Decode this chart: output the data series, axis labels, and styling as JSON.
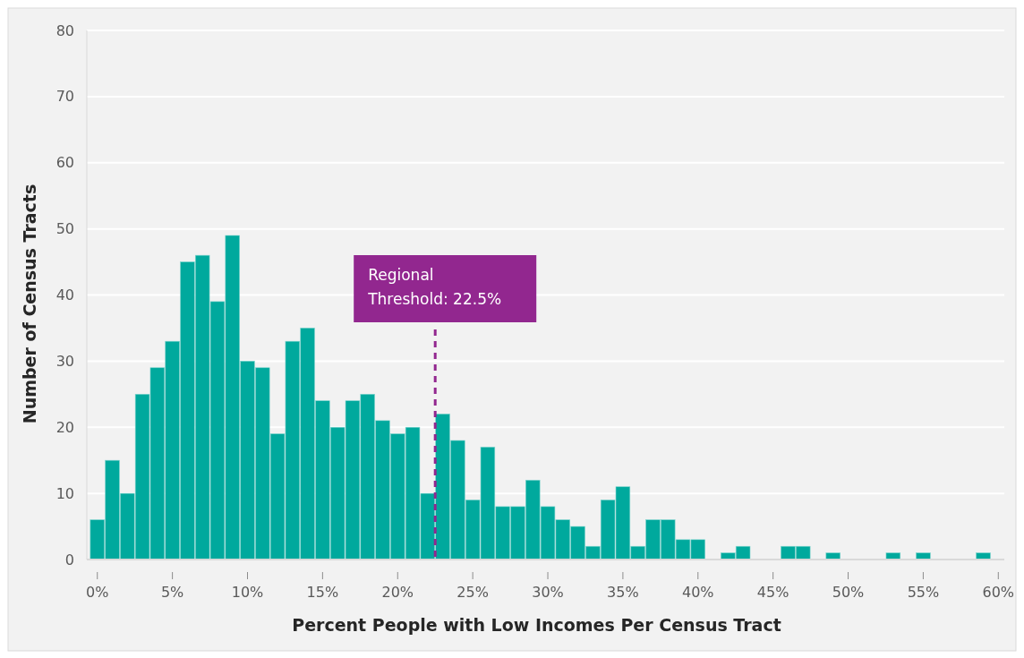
{
  "chart_data": {
    "type": "histogram",
    "xlabel": "Percent People with Low Incomes Per Census Tract",
    "ylabel": "Number of Census Tracts",
    "bins": [
      -0.5,
      0.5,
      1.5,
      2.5,
      3.5,
      4.5,
      5.5,
      6.5,
      7.5,
      8.5,
      9.5,
      10.5,
      11.5,
      12.5,
      13.5,
      14.5,
      15.5,
      16.5,
      17.5,
      18.5,
      19.5,
      20.5,
      21.5,
      22.5,
      23.5,
      24.5,
      25.5,
      26.5,
      27.5,
      28.5,
      29.5,
      30.5,
      31.5,
      32.5,
      33.5,
      34.5,
      35.5,
      36.5,
      37.5,
      38.5,
      39.5,
      40.5,
      41.5,
      42.5,
      43.5,
      44.5,
      45.5,
      46.5,
      47.5,
      48.5,
      49.5,
      50.5,
      51.5,
      52.5,
      53.5,
      54.5,
      55.5,
      56.5,
      57.5,
      58.5,
      59.5
    ],
    "values": [
      6,
      15,
      10,
      25,
      29,
      33,
      45,
      46,
      39,
      49,
      30,
      29,
      19,
      33,
      35,
      24,
      20,
      24,
      25,
      21,
      19,
      20,
      10,
      22,
      18,
      9,
      17,
      8,
      8,
      12,
      8,
      6,
      5,
      2,
      9,
      11,
      2,
      6,
      6,
      3,
      3,
      0,
      1,
      2,
      0,
      0,
      2,
      2,
      0,
      1,
      0,
      0,
      0,
      1,
      0,
      1,
      0,
      0,
      0,
      1
    ],
    "color": "#00a99d",
    "xlim": [
      -0.7,
      60.4
    ],
    "xticks": [
      {
        "value": 0,
        "label": "0%"
      },
      {
        "value": 5,
        "label": "5%"
      },
      {
        "value": 10,
        "label": "10%"
      },
      {
        "value": 15,
        "label": "15%"
      },
      {
        "value": 20,
        "label": "20%"
      },
      {
        "value": 25,
        "label": "25%"
      },
      {
        "value": 30,
        "label": "30%"
      },
      {
        "value": 35,
        "label": "35%"
      },
      {
        "value": 40,
        "label": "40%"
      },
      {
        "value": 45,
        "label": "45%"
      },
      {
        "value": 50,
        "label": "50%"
      },
      {
        "value": 55,
        "label": "55%"
      },
      {
        "value": 60,
        "label": "60%"
      }
    ],
    "ylim": [
      0,
      80
    ],
    "yticks": [
      0,
      10,
      20,
      30,
      40,
      50,
      60,
      70,
      80
    ],
    "grid": "y",
    "ref_lines": [
      {
        "axis": "x",
        "value": 22.5,
        "label": "Regional Threshold: 22.5%",
        "color": "#92278f",
        "line_style": "dashed"
      }
    ]
  }
}
